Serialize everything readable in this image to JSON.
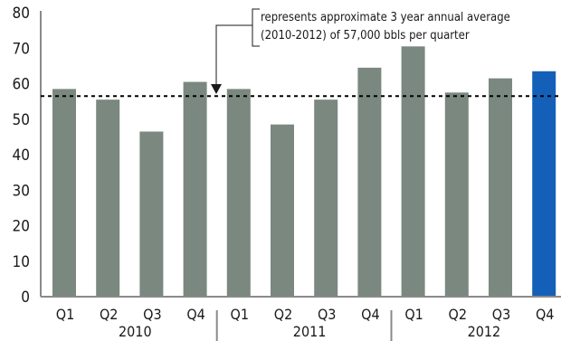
{
  "chart_data": {
    "type": "bar",
    "categories": [
      "Q1",
      "Q2",
      "Q3",
      "Q4",
      "Q1",
      "Q2",
      "Q3",
      "Q4",
      "Q1",
      "Q2",
      "Q3",
      "Q4"
    ],
    "groups": [
      {
        "label": "2010",
        "quarters": [
          "Q1",
          "Q2",
          "Q3",
          "Q4"
        ]
      },
      {
        "label": "2011",
        "quarters": [
          "Q1",
          "Q2",
          "Q3",
          "Q4"
        ]
      },
      {
        "label": "2012",
        "quarters": [
          "Q1",
          "Q2",
          "Q3",
          "Q4"
        ]
      }
    ],
    "series": [
      {
        "values": [
          58.5,
          55.5,
          46.5,
          60.5,
          58.5,
          48.5,
          55.5,
          64.5,
          70.5,
          57.5,
          61.5,
          63.5
        ]
      }
    ],
    "bar_colors": [
      "#7a8880",
      "#7a8880",
      "#7a8880",
      "#7a8880",
      "#7a8880",
      "#7a8880",
      "#7a8880",
      "#7a8880",
      "#7a8880",
      "#7a8880",
      "#7a8880",
      "#1460b8"
    ],
    "ylim": [
      0,
      80
    ],
    "yticks": [
      0,
      10,
      20,
      30,
      40,
      50,
      60,
      70,
      80
    ],
    "grid": false,
    "reference_line": {
      "value": 56.5,
      "style": "dotted",
      "color": "#000000"
    },
    "annotation": {
      "lines": [
        "represents approximate 3 year annual average",
        "(2010-2012) of 57,000 bbls per quarter"
      ]
    }
  }
}
